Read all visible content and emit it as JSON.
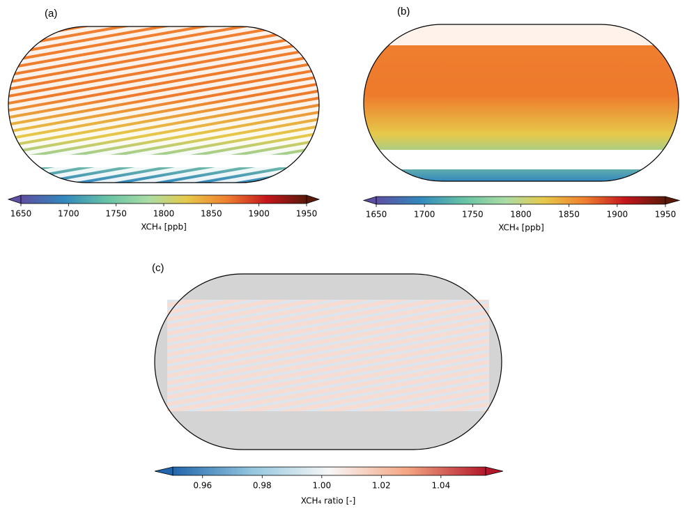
{
  "panels": [
    {
      "label": "(a)",
      "colorbar": {
        "label": "XCH₄ [ppb]",
        "lim": [
          1650,
          1950
        ],
        "ticks": [
          1650,
          1700,
          1750,
          1800,
          1850,
          1900,
          1950
        ]
      }
    },
    {
      "label": "(b)",
      "colorbar": {
        "label": "XCH₄ [ppb]",
        "lim": [
          1650,
          1950
        ],
        "ticks": [
          1650,
          1700,
          1750,
          1800,
          1850,
          1900,
          1950
        ]
      }
    },
    {
      "label": "(c)",
      "colorbar": {
        "label": "XCH₄ ratio [-]",
        "lim": [
          0.95,
          1.055
        ],
        "ticks": [
          0.96,
          0.98,
          {
            "value": 1,
            "label": "1.00"
          },
          1.02,
          1.04
        ]
      }
    }
  ]
}
